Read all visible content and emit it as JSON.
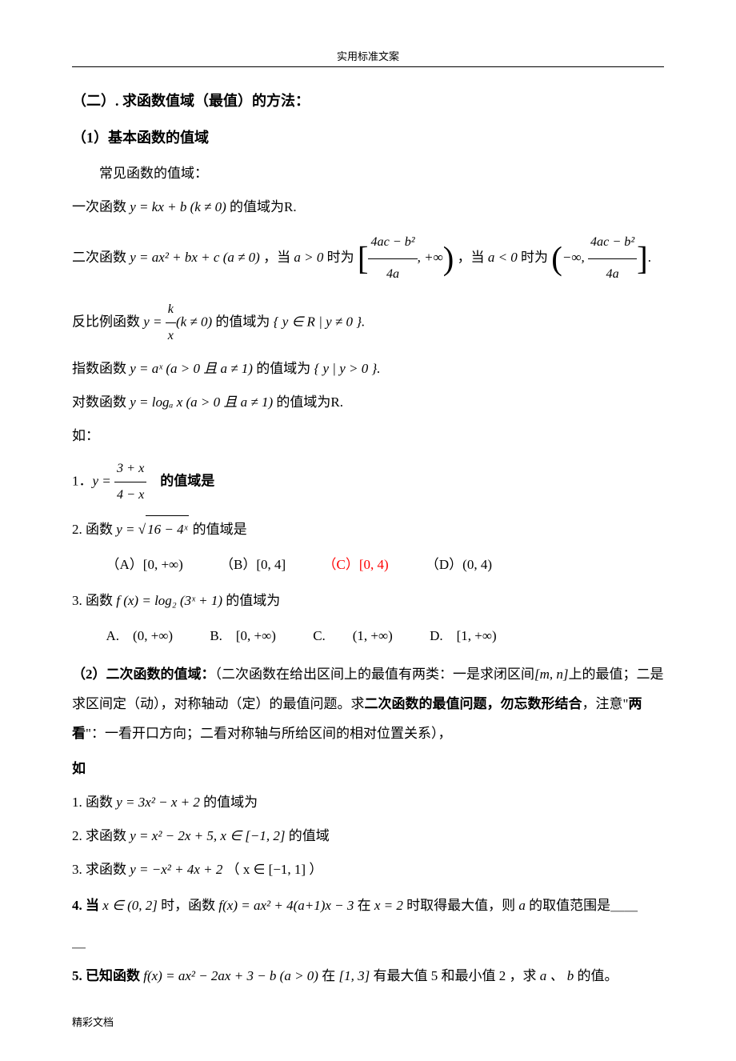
{
  "header": "实用标准文案",
  "footer": "精彩文档",
  "title_main": "（二）. 求函数值域（最值）的方法：",
  "s1": {
    "title": "（1）基本函数的值域",
    "lead": "常见函数的值域：",
    "line_linear_pre": "一次函数 ",
    "line_linear_expr": "y = kx + b (k ≠ 0)",
    "line_linear_post": " 的值域为R.",
    "line_quad_pre": "二次函数 ",
    "line_quad_expr": "y = ax² + bx + c (a ≠ 0)",
    "line_quad_mid1": " ，当 ",
    "line_quad_a_gt0": "a > 0",
    "line_quad_mid2": " 时为 ",
    "line_quad_int1_num": "4ac − b²",
    "line_quad_int1_den": "4a",
    "line_quad_mid3": " ，当 ",
    "line_quad_a_lt0": "a < 0",
    "line_quad_mid4": " 时为 ",
    "line_recip_pre": "反比例函数 ",
    "line_recip_k": "k",
    "line_recip_x": "x",
    "line_recip_cond": "(k ≠ 0)",
    "line_recip_post1": " 的值域为 ",
    "line_recip_set": "{ y ∈ R | y ≠ 0 }.",
    "line_exp_pre": "指数函数 ",
    "line_exp_expr": "y = aˣ (a > 0 且 a ≠ 1)",
    "line_exp_post": " 的值域为 ",
    "line_exp_set": "{ y | y > 0 }.",
    "line_log_pre": "对数函数 ",
    "line_log_expr": "y = logₐ x (a > 0 且 a ≠ 1)",
    "line_log_post": " 的值域为R.",
    "eg_label": "如：",
    "q1_label": "1．",
    "q1_num": "3 + x",
    "q1_den": "4 − x",
    "q1_tail": "的值域是",
    "q2": "2. 函数 ",
    "q2_sqrt": "16 − 4ˣ",
    "q2_tail": " 的值域是",
    "q2_opts": {
      "A": "（A）[0, +∞)",
      "B": "（B）[0, 4]",
      "C": "（C）[0, 4)",
      "D": "（D）(0, 4)"
    },
    "q3": "3. 函数 ",
    "q3_expr": "f (x) = log₂ (3ˣ + 1)",
    "q3_tail": " 的值域为",
    "q3_opts": {
      "A": "A.　(0, +∞)",
      "B": "B.　[0, +∞)",
      "C": "C.　　(1, +∞)",
      "D": "D.　[1, +∞)"
    }
  },
  "s2": {
    "title": "（2）二次函数的值域：",
    "desc1": "（二次函数在给出区间上的最值有两类：一是求闭区间",
    "desc_int": "[m, n]",
    "desc2": "上的最值；二是求区间定（动），对称轴动（定）的最值问题。求",
    "desc_bold1": "二次函数的最值问题，勿忘数形结合",
    "desc3": "，注意\"",
    "desc_bold2": "两看",
    "desc4": "\"：一看开口方向；二看对称轴与所给区间的相对位置关系），",
    "eg_label": "如",
    "q1": "1. 函数 ",
    "q1_expr": "y = 3x² − x + 2",
    "q1_tail": " 的值域为",
    "q2": "2. 求函数 ",
    "q2_expr": "y = x² − 2x + 5, x ∈ [−1, 2]",
    "q2_tail": " 的值域",
    "q3": "3. 求函数 ",
    "q3_expr": "y = −x² + 4x + 2",
    "q3_tail": " （ x ∈ [−1, 1] ）",
    "q4_pre": "4. 当 ",
    "q4_cond": "x ∈ (0, 2]",
    "q4_mid1": " 时，函数 ",
    "q4_expr": "f(x) = ax² + 4(a+1)x − 3",
    "q4_mid2": " 在 ",
    "q4_at": "x = 2",
    "q4_mid3": " 时取得最大值，则 ",
    "q4_var": "a",
    "q4_tail": " 的取值范围是＿＿",
    "q5_pre": "5. 已知函数 ",
    "q5_expr": "f(x) = ax² − 2ax + 3 − b (a > 0)",
    "q5_mid1": " 在 ",
    "q5_int": "[1, 3]",
    "q5_mid2": " 有最大值 5 和最小值 2 ，求 ",
    "q5_vars": "a 、 b",
    "q5_tail": " 的值。"
  }
}
